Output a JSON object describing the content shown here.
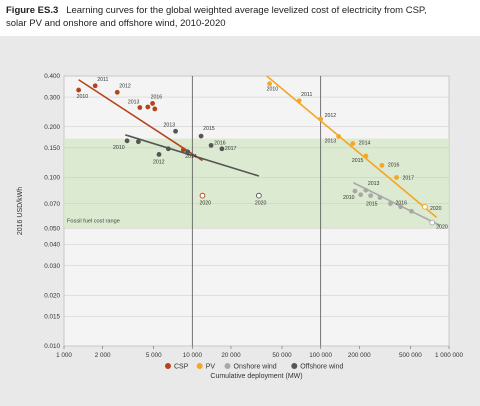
{
  "figure": {
    "number": "Figure ES.3",
    "title": "Learning curves for the global weighted average levelized cost of electricity from CSP, solar PV and onshore and offshore wind, 2010-2020"
  },
  "chart_data": {
    "type": "scatter",
    "title": "",
    "xlabel": "Cumulative deployment (MW)",
    "ylabel": "2016 USD/kWh",
    "x_scale": "log",
    "y_scale": "log",
    "xlim": [
      1000,
      1000000
    ],
    "ylim": [
      0.01,
      0.4
    ],
    "x_ticks": [
      {
        "v": 1000,
        "label": "1 000"
      },
      {
        "v": 2000,
        "label": "2 000"
      },
      {
        "v": 5000,
        "label": "5 000"
      },
      {
        "v": 10000,
        "label": "10 000"
      },
      {
        "v": 20000,
        "label": "20 000"
      },
      {
        "v": 50000,
        "label": "50 000"
      },
      {
        "v": 100000,
        "label": "100 000"
      },
      {
        "v": 200000,
        "label": "200 000"
      },
      {
        "v": 500000,
        "label": "500 000"
      },
      {
        "v": 1000000,
        "label": "1 000 000"
      }
    ],
    "y_ticks": [
      {
        "v": 0.4,
        "label": "0.400"
      },
      {
        "v": 0.3,
        "label": "0.300"
      },
      {
        "v": 0.2,
        "label": "0.200"
      },
      {
        "v": 0.15,
        "label": "0.150"
      },
      {
        "v": 0.1,
        "label": "0.100"
      },
      {
        "v": 0.07,
        "label": "0.070"
      },
      {
        "v": 0.05,
        "label": "0.050"
      },
      {
        "v": 0.04,
        "label": "0.040"
      },
      {
        "v": 0.03,
        "label": "0.030"
      },
      {
        "v": 0.02,
        "label": "0.020"
      },
      {
        "v": 0.015,
        "label": "0.015"
      },
      {
        "v": 0.01,
        "label": "0.010"
      }
    ],
    "fossil_band": {
      "label": "Fossil fuel cost range",
      "y_range": [
        0.05,
        0.17
      ]
    },
    "legend_position": "bottom",
    "series": [
      {
        "name": "CSP",
        "color": "#b5441c",
        "hollow_last": true,
        "trend": [
          [
            1300,
            0.38
          ],
          [
            12000,
            0.126
          ]
        ],
        "points": [
          {
            "x": 1300,
            "y": 0.33,
            "label": "2010"
          },
          {
            "x": 1750,
            "y": 0.35,
            "label": "2011"
          },
          {
            "x": 2600,
            "y": 0.32,
            "label": "2012"
          },
          {
            "x": 3900,
            "y": 0.26,
            "label": "2013"
          },
          {
            "x": 4500,
            "y": 0.262,
            "label": ""
          },
          {
            "x": 4900,
            "y": 0.275,
            "label": "2016"
          },
          {
            "x": 5100,
            "y": 0.255,
            "label": ""
          },
          {
            "x": 8500,
            "y": 0.146,
            "label": "2014"
          },
          {
            "x": 12000,
            "y": 0.078,
            "label": "2020"
          }
        ]
      },
      {
        "name": "PV",
        "color": "#f5a623",
        "hollow_last": true,
        "trend": [
          [
            38000,
            0.4
          ],
          [
            800000,
            0.058
          ]
        ],
        "points": [
          {
            "x": 40000,
            "y": 0.36,
            "label": "2010"
          },
          {
            "x": 68000,
            "y": 0.285,
            "label": "2011"
          },
          {
            "x": 100000,
            "y": 0.222,
            "label": "2012"
          },
          {
            "x": 138000,
            "y": 0.175,
            "label": "2013"
          },
          {
            "x": 178000,
            "y": 0.159,
            "label": "2014"
          },
          {
            "x": 225000,
            "y": 0.134,
            "label": "2015"
          },
          {
            "x": 300000,
            "y": 0.118,
            "label": "2016"
          },
          {
            "x": 390000,
            "y": 0.1,
            "label": "2017"
          },
          {
            "x": 650000,
            "y": 0.067,
            "label": "2020"
          }
        ]
      },
      {
        "name": "Onshore wind",
        "color": "#a8a8a8",
        "hollow_last": true,
        "trend": [
          [
            180000,
            0.093
          ],
          [
            850000,
            0.052
          ]
        ],
        "points": [
          {
            "x": 185000,
            "y": 0.083,
            "label": "2010"
          },
          {
            "x": 225000,
            "y": 0.084,
            "label": "2013"
          },
          {
            "x": 205000,
            "y": 0.079,
            "label": ""
          },
          {
            "x": 245000,
            "y": 0.078,
            "label": ""
          },
          {
            "x": 290000,
            "y": 0.076,
            "label": "2015"
          },
          {
            "x": 350000,
            "y": 0.07,
            "label": "2016"
          },
          {
            "x": 420000,
            "y": 0.067,
            "label": ""
          },
          {
            "x": 510000,
            "y": 0.063,
            "label": ""
          },
          {
            "x": 740000,
            "y": 0.054,
            "label": "2020"
          }
        ]
      },
      {
        "name": "Offshore wind",
        "color": "#555555",
        "hollow_last": true,
        "trend": [
          [
            3000,
            0.179
          ],
          [
            33000,
            0.102
          ]
        ],
        "points": [
          {
            "x": 3100,
            "y": 0.165,
            "label": "2010"
          },
          {
            "x": 3800,
            "y": 0.163,
            "label": ""
          },
          {
            "x": 5500,
            "y": 0.137,
            "label": "2012"
          },
          {
            "x": 6500,
            "y": 0.148,
            "label": ""
          },
          {
            "x": 7400,
            "y": 0.188,
            "label": "2013"
          },
          {
            "x": 9200,
            "y": 0.142,
            "label": ""
          },
          {
            "x": 11700,
            "y": 0.176,
            "label": "2015"
          },
          {
            "x": 14000,
            "y": 0.155,
            "label": "2016"
          },
          {
            "x": 17000,
            "y": 0.148,
            "label": "2017"
          },
          {
            "x": 33000,
            "y": 0.078,
            "label": "2020"
          }
        ]
      }
    ]
  }
}
